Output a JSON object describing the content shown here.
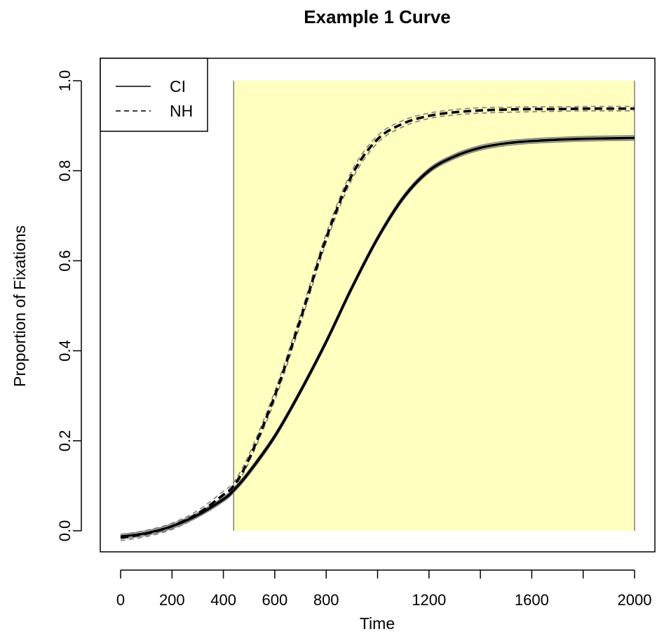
{
  "chart_data": {
    "type": "line",
    "title": "Example 1 Curve",
    "xlabel": "Time",
    "ylabel": "Proportion of Fixations",
    "xlim": [
      0,
      2000
    ],
    "ylim": [
      0.0,
      1.0
    ],
    "x_ticks": [
      0,
      200,
      400,
      600,
      800,
      1000,
      1200,
      1400,
      1600,
      1800,
      2000
    ],
    "x_tick_labels": [
      "0",
      "200",
      "400",
      "600",
      "800",
      "",
      "1200",
      "",
      "1600",
      "",
      "2000"
    ],
    "y_ticks": [
      0.0,
      0.2,
      0.4,
      0.6,
      0.8,
      1.0
    ],
    "y_tick_labels": [
      "0.0",
      "0.2",
      "0.4",
      "0.6",
      "0.8",
      "1.0"
    ],
    "grid": false,
    "legend_position": "top-left",
    "highlight_region": {
      "x_start": 440,
      "x_end": 2000,
      "y_start": 0.0,
      "y_end": 1.0,
      "color": "#ffffbf",
      "border_color": "#808080"
    },
    "series": [
      {
        "name": "CI",
        "line_style": "solid",
        "color": "#000000",
        "band_color": "#808080",
        "x": [
          0,
          100,
          200,
          300,
          400,
          440,
          500,
          600,
          700,
          800,
          900,
          1000,
          1100,
          1200,
          1300,
          1400,
          1500,
          1600,
          1700,
          1800,
          1900,
          2000
        ],
        "y": [
          -0.013,
          -0.005,
          0.01,
          0.035,
          0.07,
          0.09,
          0.13,
          0.21,
          0.31,
          0.42,
          0.54,
          0.65,
          0.74,
          0.8,
          0.832,
          0.851,
          0.861,
          0.866,
          0.869,
          0.871,
          0.872,
          0.873
        ],
        "lower": [
          -0.018,
          -0.01,
          0.005,
          0.03,
          0.065,
          0.085,
          0.125,
          0.205,
          0.305,
          0.415,
          0.535,
          0.645,
          0.735,
          0.795,
          0.827,
          0.846,
          0.856,
          0.861,
          0.864,
          0.866,
          0.867,
          0.868
        ],
        "upper": [
          -0.008,
          0.0,
          0.015,
          0.04,
          0.075,
          0.095,
          0.135,
          0.215,
          0.315,
          0.425,
          0.545,
          0.655,
          0.745,
          0.805,
          0.837,
          0.856,
          0.866,
          0.871,
          0.874,
          0.876,
          0.877,
          0.878
        ]
      },
      {
        "name": "NH",
        "line_style": "dashed",
        "color": "#000000",
        "band_color": "#808080",
        "x": [
          0,
          100,
          200,
          300,
          400,
          440,
          500,
          600,
          700,
          800,
          900,
          1000,
          1100,
          1200,
          1300,
          1400,
          1500,
          1600,
          1700,
          1800,
          1900,
          2000
        ],
        "y": [
          -0.015,
          -0.006,
          0.01,
          0.038,
          0.08,
          0.1,
          0.16,
          0.3,
          0.47,
          0.65,
          0.79,
          0.87,
          0.905,
          0.922,
          0.93,
          0.934,
          0.936,
          0.937,
          0.937,
          0.938,
          0.938,
          0.938
        ],
        "lower": [
          -0.022,
          -0.013,
          0.003,
          0.031,
          0.073,
          0.094,
          0.153,
          0.29,
          0.46,
          0.64,
          0.78,
          0.862,
          0.898,
          0.916,
          0.924,
          0.928,
          0.93,
          0.931,
          0.932,
          0.933,
          0.933,
          0.933
        ],
        "upper": [
          -0.008,
          0.001,
          0.017,
          0.045,
          0.088,
          0.108,
          0.17,
          0.31,
          0.48,
          0.66,
          0.8,
          0.878,
          0.912,
          0.928,
          0.936,
          0.94,
          0.941,
          0.942,
          0.942,
          0.943,
          0.943,
          0.943
        ]
      }
    ]
  }
}
